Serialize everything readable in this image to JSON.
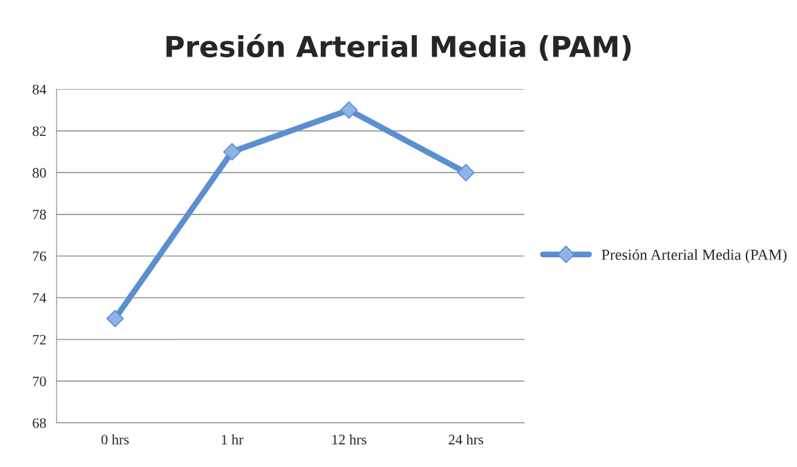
{
  "chart_data": {
    "type": "line",
    "title": "Presión Arterial Media (PAM)",
    "categories": [
      "0 hrs",
      "1 hr",
      "12 hrs",
      "24 hrs"
    ],
    "series": [
      {
        "name": "Presión Arterial Media (PAM)",
        "color": "#5b8fd0",
        "values": [
          73,
          81,
          83,
          80
        ]
      }
    ],
    "ylim": [
      68,
      84
    ],
    "yticks": [
      68,
      70,
      72,
      74,
      76,
      78,
      80,
      82,
      84
    ],
    "grid": "y",
    "legend": "right",
    "marker": "diamond",
    "line_style": "solid"
  }
}
